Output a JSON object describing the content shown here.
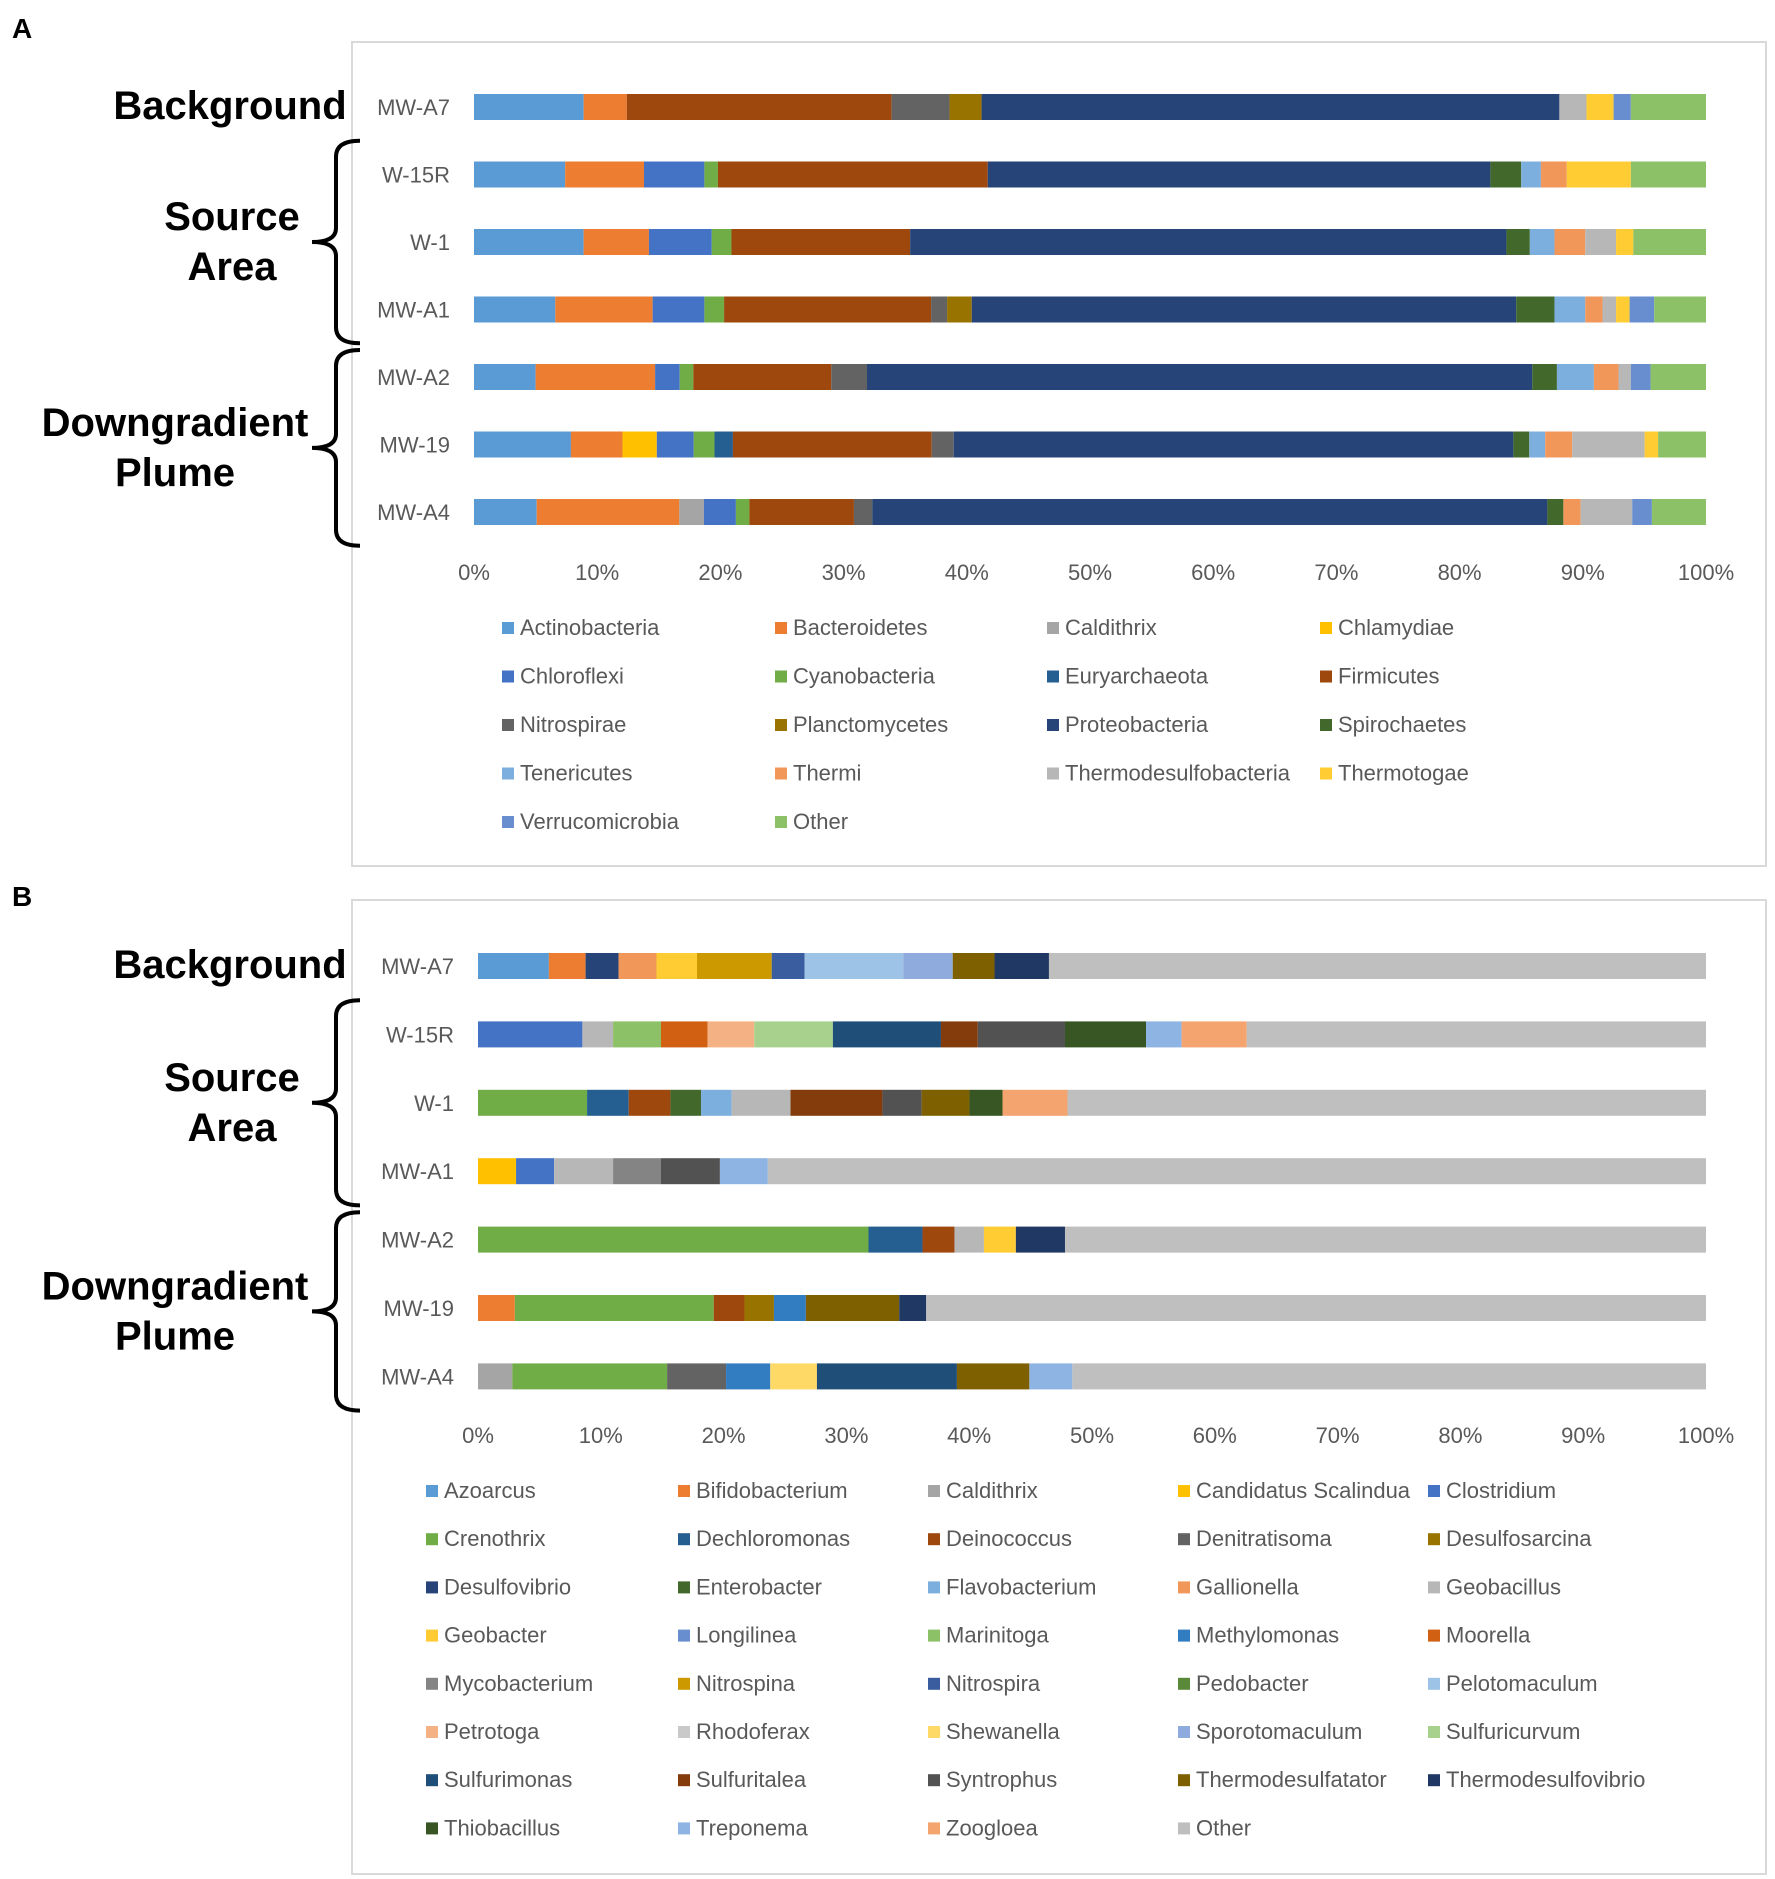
{
  "panel_labels": [
    "A",
    "B"
  ],
  "groups": [
    {
      "label": "Background",
      "lines": [
        "Background"
      ]
    },
    {
      "label": "Source Area",
      "lines": [
        "Source",
        "Area"
      ]
    },
    {
      "label": "Downgradient Plume",
      "lines": [
        "Downgradient",
        "Plume"
      ]
    }
  ],
  "colors": {
    "c1": "#5b9bd5",
    "c2": "#ed7d31",
    "c3": "#a5a5a5",
    "c4": "#ffc000",
    "c5": "#4472c4",
    "c6": "#70ad47",
    "c7": "#255e91",
    "c8": "#9e480e",
    "c9": "#636363",
    "c10": "#997300",
    "c11": "#264478",
    "c12": "#43682b",
    "c13": "#7cafdd",
    "c14": "#f1975a",
    "c15": "#b7b7b7",
    "c16": "#ffcd33",
    "c17": "#698ed0",
    "c18": "#8cc168",
    "c19": "#327dc2",
    "c20": "#d26012",
    "c21": "#848484",
    "c22": "#cc9a00",
    "c23": "#3a5da0",
    "c24": "#5a8a39",
    "c25": "#9dc3e6",
    "c26": "#f4b183",
    "c27": "#c9c9c9",
    "c28": "#ffd966",
    "c29": "#8faadc",
    "c30": "#a9d18e",
    "c31": "#1f4e79",
    "c32": "#843c0c",
    "c33": "#525252",
    "c34": "#7f6000",
    "c35": "#203864",
    "c36": "#375623",
    "c37": "#8eb4e3",
    "c38": "#f4a46e",
    "other": "#bfbfbf"
  },
  "chart_data": [
    {
      "type": "bar",
      "orientation": "horizontal",
      "stacked": "percent",
      "panel": "A",
      "title": "",
      "xlabel": "",
      "ylabel": "",
      "xlim": [
        0,
        100
      ],
      "x_ticks": [
        "0%",
        "10%",
        "20%",
        "30%",
        "40%",
        "50%",
        "60%",
        "70%",
        "80%",
        "90%",
        "100%"
      ],
      "categories": [
        "MW-A7",
        "W-15R",
        "W-1",
        "MW-A1",
        "MW-A2",
        "MW-19",
        "MW-A4"
      ],
      "series": [
        {
          "name": "Actinobacteria",
          "color": "#5b9bd5",
          "values": [
            8.9,
            7.4,
            8.9,
            6.6,
            5.0,
            7.9,
            5.1
          ]
        },
        {
          "name": "Bacteroidetes",
          "color": "#ed7d31",
          "values": [
            3.5,
            6.4,
            5.3,
            7.9,
            9.7,
            4.2,
            11.6
          ]
        },
        {
          "name": "Caldithrix",
          "color": "#a5a5a5",
          "values": [
            0,
            0,
            0,
            0,
            0,
            0,
            2.0
          ]
        },
        {
          "name": "Chlamydiae",
          "color": "#ffc000",
          "values": [
            0,
            0,
            0,
            0,
            0,
            2.8,
            0
          ]
        },
        {
          "name": "Chloroflexi",
          "color": "#4472c4",
          "values": [
            0,
            4.9,
            5.1,
            4.2,
            2.0,
            3.0,
            2.6
          ]
        },
        {
          "name": "Cyanobacteria",
          "color": "#70ad47",
          "values": [
            0,
            1.1,
            1.6,
            1.6,
            1.1,
            1.7,
            1.1
          ]
        },
        {
          "name": "Euryarchaeota",
          "color": "#255e91",
          "values": [
            0,
            0,
            0,
            0,
            0,
            1.5,
            0
          ]
        },
        {
          "name": "Firmicutes",
          "color": "#9e480e",
          "values": [
            21.5,
            21.9,
            14.5,
            16.8,
            11.2,
            16.2,
            8.5
          ]
        },
        {
          "name": "Nitrospirae",
          "color": "#636363",
          "values": [
            4.7,
            0,
            0,
            1.3,
            2.9,
            1.8,
            1.5
          ]
        },
        {
          "name": "Planctomycetes",
          "color": "#997300",
          "values": [
            2.6,
            0,
            0,
            2.0,
            0,
            0,
            0
          ]
        },
        {
          "name": "Proteobacteria",
          "color": "#264478",
          "values": [
            46.9,
            40.8,
            48.4,
            44.2,
            54.0,
            45.6,
            54.9
          ]
        },
        {
          "name": "Spirochaetes",
          "color": "#43682b",
          "values": [
            0,
            2.5,
            1.9,
            3.1,
            2.0,
            1.3,
            1.3
          ]
        },
        {
          "name": "Tenericutes",
          "color": "#7cafdd",
          "values": [
            0,
            1.6,
            2.0,
            2.5,
            3.0,
            1.3,
            0
          ]
        },
        {
          "name": "Thermi",
          "color": "#f1975a",
          "values": [
            0,
            2.1,
            2.5,
            1.4,
            2.0,
            2.2,
            1.4
          ]
        },
        {
          "name": "Thermodesulfobacteria",
          "color": "#b7b7b7",
          "values": [
            2.2,
            0,
            2.5,
            1.1,
            1.0,
            5.9,
            4.2
          ]
        },
        {
          "name": "Thermotogae",
          "color": "#ffcd33",
          "values": [
            2.2,
            5.2,
            1.4,
            1.1,
            0,
            1.1,
            0
          ]
        },
        {
          "name": "Verrucomicrobia",
          "color": "#698ed0",
          "values": [
            1.4,
            0,
            0,
            2.0,
            1.6,
            0,
            1.6
          ]
        },
        {
          "name": "Other",
          "color": "#8cc168",
          "values": [
            6.1,
            6.1,
            5.9,
            4.2,
            4.5,
            3.9,
            4.4
          ]
        }
      ]
    },
    {
      "type": "bar",
      "orientation": "horizontal",
      "stacked": "percent",
      "panel": "B",
      "title": "",
      "xlabel": "",
      "ylabel": "",
      "xlim": [
        0,
        100
      ],
      "x_ticks": [
        "0%",
        "10%",
        "20%",
        "30%",
        "40%",
        "50%",
        "60%",
        "70%",
        "80%",
        "90%",
        "100%"
      ],
      "categories": [
        "MW-A7",
        "W-15R",
        "W-1",
        "MW-A1",
        "MW-A2",
        "MW-19",
        "MW-A4"
      ],
      "series": [
        {
          "name": "Azoarcus",
          "color": "#5b9bd5",
          "values": [
            5.6,
            0,
            0,
            0,
            0,
            0,
            0
          ]
        },
        {
          "name": "Bifidobacterium",
          "color": "#ed7d31",
          "values": [
            2.9,
            0,
            0,
            0,
            0,
            3.0,
            0
          ]
        },
        {
          "name": "Caldithrix",
          "color": "#a5a5a5",
          "values": [
            0,
            0,
            0,
            0,
            0,
            0,
            2.8
          ]
        },
        {
          "name": "Candidatus Scalindua",
          "color": "#ffc000",
          "values": [
            0,
            0,
            0,
            3.1,
            0,
            0,
            0
          ]
        },
        {
          "name": "Clostridium",
          "color": "#4472c4",
          "values": [
            0,
            8.5,
            0,
            3.1,
            0,
            0,
            0
          ]
        },
        {
          "name": "Crenothrix",
          "color": "#70ad47",
          "values": [
            0,
            0,
            8.9,
            0,
            31.8,
            16.2,
            12.6
          ]
        },
        {
          "name": "Dechloromonas",
          "color": "#255e91",
          "values": [
            0,
            0,
            3.4,
            0,
            4.4,
            0,
            0
          ]
        },
        {
          "name": "Deinococcus",
          "color": "#9e480e",
          "values": [
            0,
            0,
            3.4,
            0,
            2.6,
            2.5,
            0
          ]
        },
        {
          "name": "Denitratisoma",
          "color": "#636363",
          "values": [
            0,
            0,
            0,
            0,
            0,
            0,
            4.8
          ]
        },
        {
          "name": "Desulfosarcina",
          "color": "#997300",
          "values": [
            0,
            0,
            0,
            0,
            0,
            2.4,
            0
          ]
        },
        {
          "name": "Desulfovibrio",
          "color": "#264478",
          "values": [
            2.6,
            0,
            0,
            0,
            0,
            0,
            0
          ]
        },
        {
          "name": "Enterobacter",
          "color": "#43682b",
          "values": [
            0,
            0,
            2.5,
            0,
            0,
            0,
            0
          ]
        },
        {
          "name": "Flavobacterium",
          "color": "#7cafdd",
          "values": [
            0,
            0,
            2.5,
            0,
            0,
            0,
            0
          ]
        },
        {
          "name": "Gallionella",
          "color": "#f1975a",
          "values": [
            3.0,
            0,
            0,
            0,
            0,
            0,
            0
          ]
        },
        {
          "name": "Geobacillus",
          "color": "#b7b7b7",
          "values": [
            0,
            2.5,
            4.8,
            4.8,
            2.4,
            0,
            0
          ]
        },
        {
          "name": "Geobacter",
          "color": "#ffcd33",
          "values": [
            3.2,
            0,
            0,
            0,
            2.6,
            0,
            0
          ]
        },
        {
          "name": "Longilinea",
          "color": "#698ed0",
          "values": [
            0,
            0,
            0,
            0,
            0,
            0,
            0
          ]
        },
        {
          "name": "Marinitoga",
          "color": "#8cc168",
          "values": [
            0,
            3.9,
            0,
            0,
            0,
            0,
            0
          ]
        },
        {
          "name": "Methylomonas",
          "color": "#327dc2",
          "values": [
            0,
            0,
            0,
            0,
            0,
            2.6,
            3.6
          ]
        },
        {
          "name": "Moorella",
          "color": "#d26012",
          "values": [
            0,
            3.8,
            0,
            0,
            0,
            0,
            0
          ]
        },
        {
          "name": "Mycobacterium",
          "color": "#848484",
          "values": [
            0,
            0,
            0,
            3.9,
            0,
            0,
            0
          ]
        },
        {
          "name": "Nitrospina",
          "color": "#cc9a00",
          "values": [
            5.9,
            0,
            0,
            0,
            0,
            0,
            0
          ]
        },
        {
          "name": "Nitrospira",
          "color": "#3a5da0",
          "values": [
            2.6,
            0,
            0,
            0,
            0,
            0,
            0
          ]
        },
        {
          "name": "Pedobacter",
          "color": "#5a8a39",
          "values": [
            0,
            0,
            0,
            0,
            0,
            0,
            0
          ]
        },
        {
          "name": "Pelotomaculum",
          "color": "#9dc3e6",
          "values": [
            7.8,
            0,
            0,
            0,
            0,
            0,
            0
          ]
        },
        {
          "name": "Petrotoga",
          "color": "#f4b183",
          "values": [
            0,
            3.8,
            0,
            0,
            0,
            0,
            0
          ]
        },
        {
          "name": "Rhodoferax",
          "color": "#c9c9c9",
          "values": [
            0,
            0,
            0,
            0,
            0,
            0,
            0
          ]
        },
        {
          "name": "Shewanella",
          "color": "#ffd966",
          "values": [
            0,
            0,
            0,
            0,
            0,
            0,
            3.8
          ]
        },
        {
          "name": "Sporotomaculum",
          "color": "#8faadc",
          "values": [
            3.9,
            0,
            0,
            0,
            0,
            0,
            0
          ]
        },
        {
          "name": "Sulfuricurvum",
          "color": "#a9d18e",
          "values": [
            0,
            6.4,
            0,
            0,
            0,
            0,
            0
          ]
        },
        {
          "name": "Sulfurimonas",
          "color": "#1f4e79",
          "values": [
            0,
            8.8,
            0,
            0,
            0,
            0,
            11.4
          ]
        },
        {
          "name": "Sulfuritalea",
          "color": "#843c0c",
          "values": [
            0,
            3.0,
            7.5,
            0,
            0,
            0,
            0
          ]
        },
        {
          "name": "Syntrophus",
          "color": "#525252",
          "values": [
            0,
            7.1,
            3.2,
            4.8,
            0,
            0,
            0
          ]
        },
        {
          "name": "Thermodesulfatator",
          "color": "#7f6000",
          "values": [
            3.3,
            0,
            3.9,
            0,
            0,
            7.6,
            5.9
          ]
        },
        {
          "name": "Thermodesulfovibrio",
          "color": "#203864",
          "values": [
            4.3,
            0,
            0,
            0,
            4.0,
            2.2,
            0
          ]
        },
        {
          "name": "Thiobacillus",
          "color": "#375623",
          "values": [
            0,
            6.6,
            2.7,
            0,
            0,
            0,
            0
          ]
        },
        {
          "name": "Treponema",
          "color": "#8eb4e3",
          "values": [
            0,
            2.9,
            0,
            3.9,
            0,
            0,
            3.5
          ]
        },
        {
          "name": "Zoogloea",
          "color": "#f4a46e",
          "values": [
            0,
            5.3,
            5.3,
            0,
            0,
            0,
            0
          ]
        },
        {
          "name": "Other",
          "color": "#bfbfbf",
          "values": [
            51.9,
            37.4,
            52.1,
            76.4,
            52.2,
            63.5,
            51.6
          ]
        }
      ]
    }
  ]
}
